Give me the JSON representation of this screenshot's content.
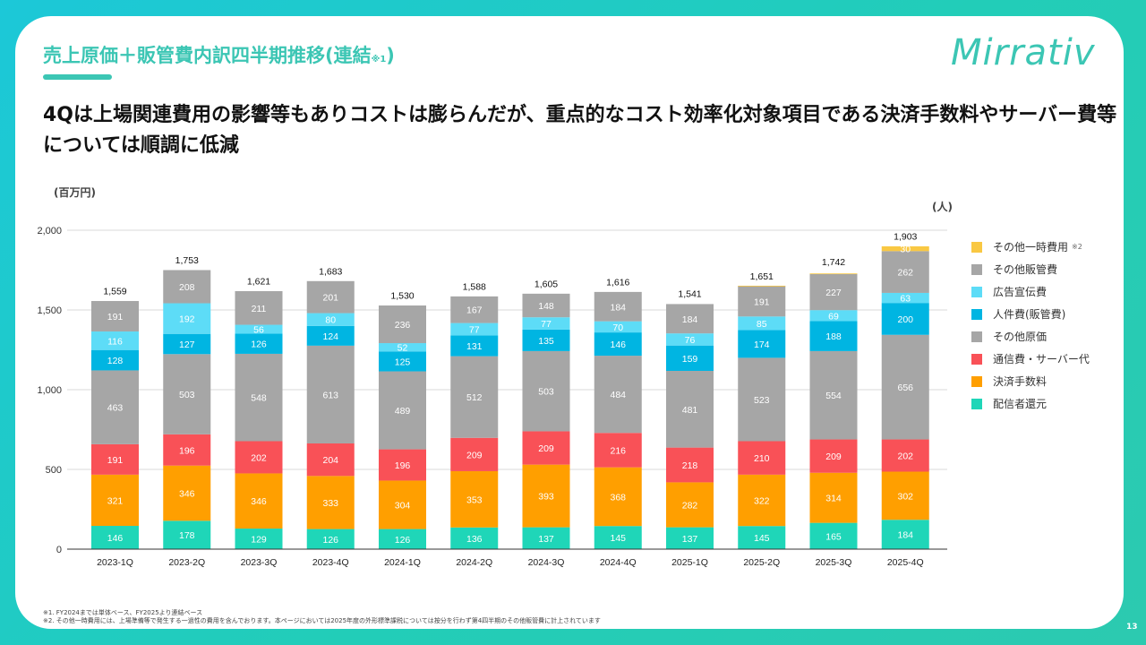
{
  "header": {
    "title": "売上原価＋販管費内訳四半期推移(連結",
    "title_note": "※1",
    "title_close": ")",
    "logo": "Mirrativ"
  },
  "headline": "4Qは上場関連費用の影響等もありコストは膨らんだが、重点的なコスト効率化対象項目である決済手数料やサーバー費等については順調に低減",
  "page_number": "13",
  "footnotes": [
    "※1. FY2024までは単体ベース、FY2025より連結ベース",
    "※2. その他一時費用には、上場準備等で発生する一過性の費用を含んでおります。本ページにおいては2025年度の外形標準課税については按分を行わず第4四半期のその他販管費に計上されています"
  ],
  "chart_data": {
    "type": "bar",
    "stacked": true,
    "title": "",
    "ylabel": "(百万円)",
    "secondary_unit_label": "(人)",
    "xlabel": "",
    "ylim": [
      0,
      2000
    ],
    "yticks": [
      0,
      500,
      1000,
      1500,
      2000
    ],
    "ytick_labels": [
      "0",
      "500",
      "1,000",
      "1,500",
      "2,000"
    ],
    "grid": true,
    "legend_position": "right",
    "categories": [
      "2023-1Q",
      "2023-2Q",
      "2023-3Q",
      "2023-4Q",
      "2024-1Q",
      "2024-2Q",
      "2024-3Q",
      "2024-4Q",
      "2025-1Q",
      "2025-2Q",
      "2025-3Q",
      "2025-4Q"
    ],
    "totals": [
      1559,
      1753,
      1621,
      1683,
      1530,
      1588,
      1605,
      1616,
      1541,
      1651,
      1742,
      1903
    ],
    "total_labels": [
      "1,559",
      "1,753",
      "1,621",
      "1,683",
      "1,530",
      "1,588",
      "1,605",
      "1,616",
      "1,541",
      "1,651",
      "1,742",
      "1,903"
    ],
    "series": [
      {
        "name": "配信者還元",
        "color": "#1fd6b8",
        "values": [
          146,
          178,
          129,
          126,
          126,
          136,
          137,
          145,
          137,
          145,
          165,
          184
        ],
        "labels": [
          true,
          true,
          true,
          true,
          true,
          true,
          true,
          true,
          true,
          true,
          true,
          true
        ]
      },
      {
        "name": "決済手数料",
        "color": "#ff9f00",
        "values": [
          321,
          346,
          346,
          333,
          304,
          353,
          393,
          368,
          282,
          322,
          314,
          302
        ],
        "labels": [
          true,
          true,
          true,
          true,
          true,
          true,
          true,
          true,
          true,
          true,
          true,
          true
        ]
      },
      {
        "name": "通信費・サーバー代",
        "color": "#f95157",
        "values": [
          191,
          196,
          202,
          204,
          196,
          209,
          209,
          216,
          218,
          210,
          209,
          202
        ],
        "labels": [
          true,
          true,
          true,
          true,
          true,
          true,
          true,
          true,
          true,
          true,
          true,
          true
        ]
      },
      {
        "name": "その他原価",
        "color": "#a6a6a6",
        "values": [
          463,
          503,
          548,
          613,
          489,
          512,
          503,
          484,
          481,
          523,
          554,
          656
        ],
        "labels": [
          true,
          true,
          true,
          true,
          true,
          true,
          true,
          true,
          true,
          true,
          true,
          true
        ]
      },
      {
        "name": "人件費(販管費)",
        "color": "#00b5e2",
        "values": [
          128,
          127,
          126,
          124,
          125,
          131,
          135,
          146,
          159,
          174,
          188,
          200
        ],
        "labels": [
          true,
          true,
          true,
          true,
          true,
          true,
          true,
          true,
          true,
          true,
          true,
          true
        ]
      },
      {
        "name": "広告宣伝費",
        "color": "#5ddcf7",
        "values": [
          116,
          192,
          56,
          80,
          52,
          77,
          77,
          70,
          76,
          85,
          69,
          63
        ],
        "labels": [
          true,
          true,
          true,
          true,
          true,
          true,
          true,
          true,
          true,
          true,
          true,
          true
        ]
      },
      {
        "name": "その他販管費",
        "color": "#a6a6a6",
        "values": [
          191,
          208,
          211,
          201,
          236,
          167,
          148,
          184,
          184,
          191,
          227,
          262
        ],
        "labels": [
          true,
          true,
          true,
          true,
          true,
          true,
          true,
          true,
          true,
          true,
          true,
          true
        ]
      },
      {
        "name": "その他一時費用",
        "color": "#f9c843",
        "values": [
          0,
          0,
          0,
          0,
          0,
          0,
          0,
          0,
          0,
          2,
          3,
          30
        ],
        "labels": [
          false,
          false,
          false,
          false,
          false,
          false,
          false,
          false,
          false,
          false,
          false,
          true
        ]
      }
    ],
    "legend": [
      {
        "name": "その他一時費用",
        "note": "※2",
        "color": "#f9c843"
      },
      {
        "name": "その他販管費",
        "note": "",
        "color": "#a6a6a6"
      },
      {
        "name": "広告宣伝費",
        "note": "",
        "color": "#5ddcf7"
      },
      {
        "name": "人件費(販管費)",
        "note": "",
        "color": "#00b5e2"
      },
      {
        "name": "その他原価",
        "note": "",
        "color": "#a6a6a6"
      },
      {
        "name": "通信費・サーバー代",
        "note": "",
        "color": "#f95157"
      },
      {
        "name": "決済手数料",
        "note": "",
        "color": "#ff9f00"
      },
      {
        "name": "配信者還元",
        "note": "",
        "color": "#1fd6b8"
      }
    ]
  }
}
